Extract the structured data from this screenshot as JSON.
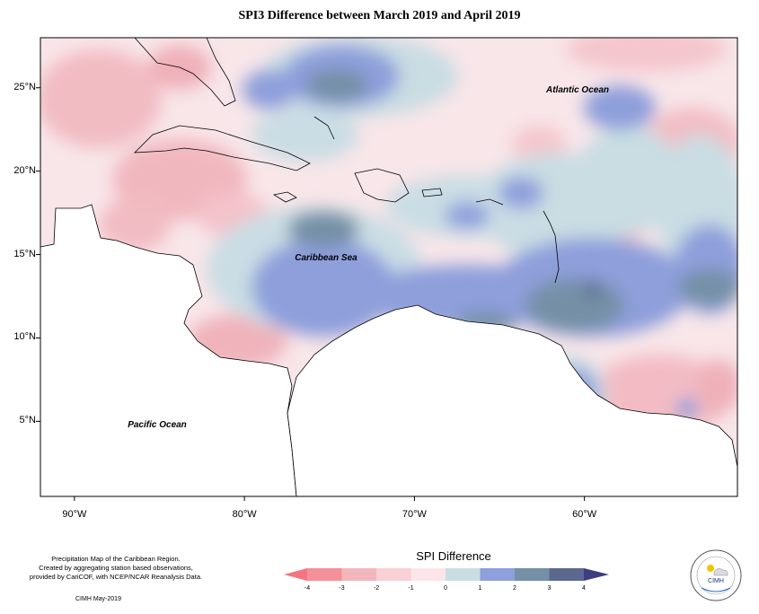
{
  "title": "SPI3 Difference between March 2019 and April 2019",
  "map": {
    "longitude_range": [
      -92,
      -51
    ],
    "latitude_range": [
      0.5,
      28
    ],
    "longitude_ticks": [
      {
        "value": -90,
        "label": "90°W"
      },
      {
        "value": -80,
        "label": "80°W"
      },
      {
        "value": -70,
        "label": "70°W"
      },
      {
        "value": -60,
        "label": "60°W"
      }
    ],
    "latitude_ticks": [
      {
        "value": 25,
        "label": "25°N"
      },
      {
        "value": 20,
        "label": "20°N"
      },
      {
        "value": 15,
        "label": "15°N"
      },
      {
        "value": 10,
        "label": "10°N"
      },
      {
        "value": 5,
        "label": "5°N"
      }
    ],
    "region_labels": {
      "atlantic": "Atlantic Ocean",
      "caribbean": "Caribbean Sea",
      "pacific": "Pacific Ocean"
    }
  },
  "legend": {
    "title": "SPI Difference",
    "ticks": [
      "-4",
      "-3",
      "-2",
      "-1",
      "0",
      "1",
      "2",
      "3",
      "4"
    ],
    "colors": [
      "#f4909a",
      "#f2b7bd",
      "#f9d0d6",
      "#fbe5e8",
      "#c9dde3",
      "#8e9fdb",
      "#7490a6",
      "#5c6890"
    ]
  },
  "footer": {
    "lines": [
      "Precipitation Map of the Caribbean Region.",
      "Created by aggregating station based observations,",
      "provided by CariCOF, with NCEP/NCAR Reanalysis Data."
    ],
    "credit": "CIMH May-2019"
  },
  "logo": {
    "text": "CIMH"
  }
}
